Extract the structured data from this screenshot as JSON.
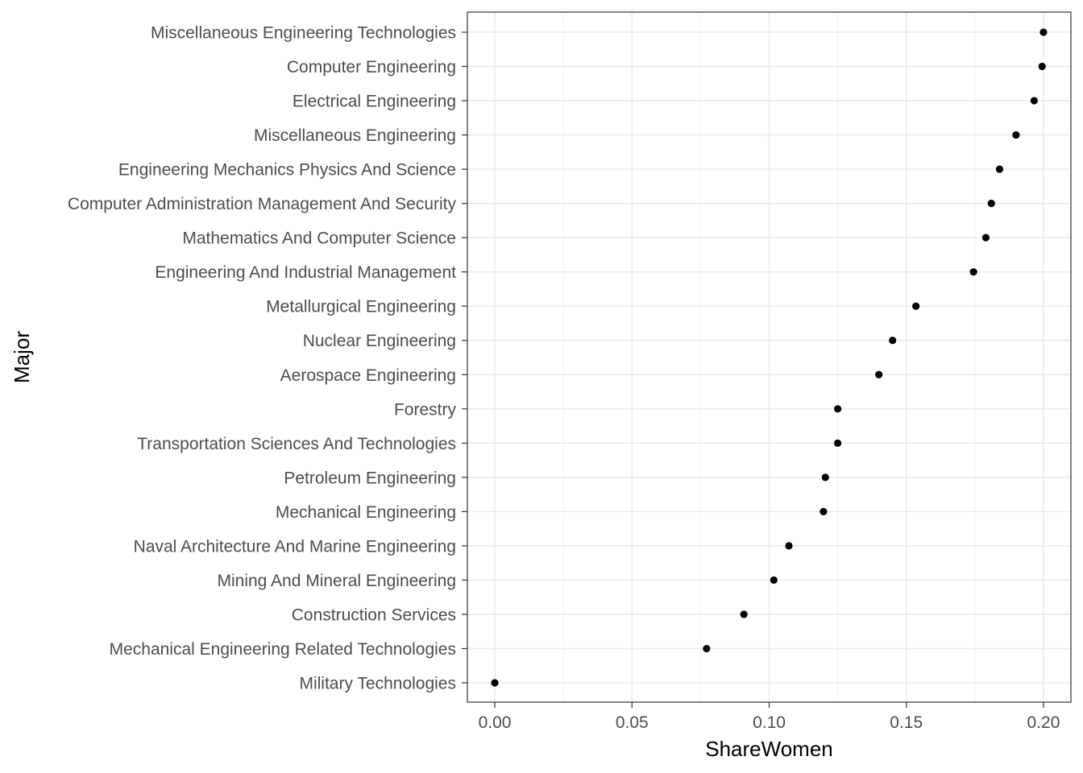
{
  "chart_data": {
    "type": "scatter",
    "xlabel": "ShareWomen",
    "ylabel": "Major",
    "xlim": [
      -0.01,
      0.21
    ],
    "x_ticks": [
      0.0,
      0.05,
      0.1,
      0.15,
      0.2
    ],
    "x_tick_labels": [
      "0.00",
      "0.05",
      "0.10",
      "0.15",
      "0.20"
    ],
    "grid": true,
    "legend": "none",
    "point_color": "#000000",
    "categories": [
      "Miscellaneous Engineering Technologies",
      "Computer Engineering",
      "Electrical Engineering",
      "Miscellaneous Engineering",
      "Engineering Mechanics Physics And Science",
      "Computer Administration Management And Security",
      "Mathematics And Computer Science",
      "Engineering And Industrial Management",
      "Metallurgical Engineering",
      "Nuclear Engineering",
      "Aerospace Engineering",
      "Forestry",
      "Transportation Sciences And Technologies",
      "Petroleum Engineering",
      "Mechanical Engineering",
      "Naval Architecture And Marine Engineering",
      "Mining And Mineral Engineering",
      "Construction Services",
      "Mechanical Engineering Related Technologies",
      "Military Technologies"
    ],
    "values": [
      0.2,
      0.1995,
      0.1966,
      0.19,
      0.184,
      0.181,
      0.179,
      0.1745,
      0.1535,
      0.145,
      0.14,
      0.125,
      0.125,
      0.1205,
      0.1198,
      0.1072,
      0.1017,
      0.0908,
      0.0772,
      0.0
    ]
  }
}
